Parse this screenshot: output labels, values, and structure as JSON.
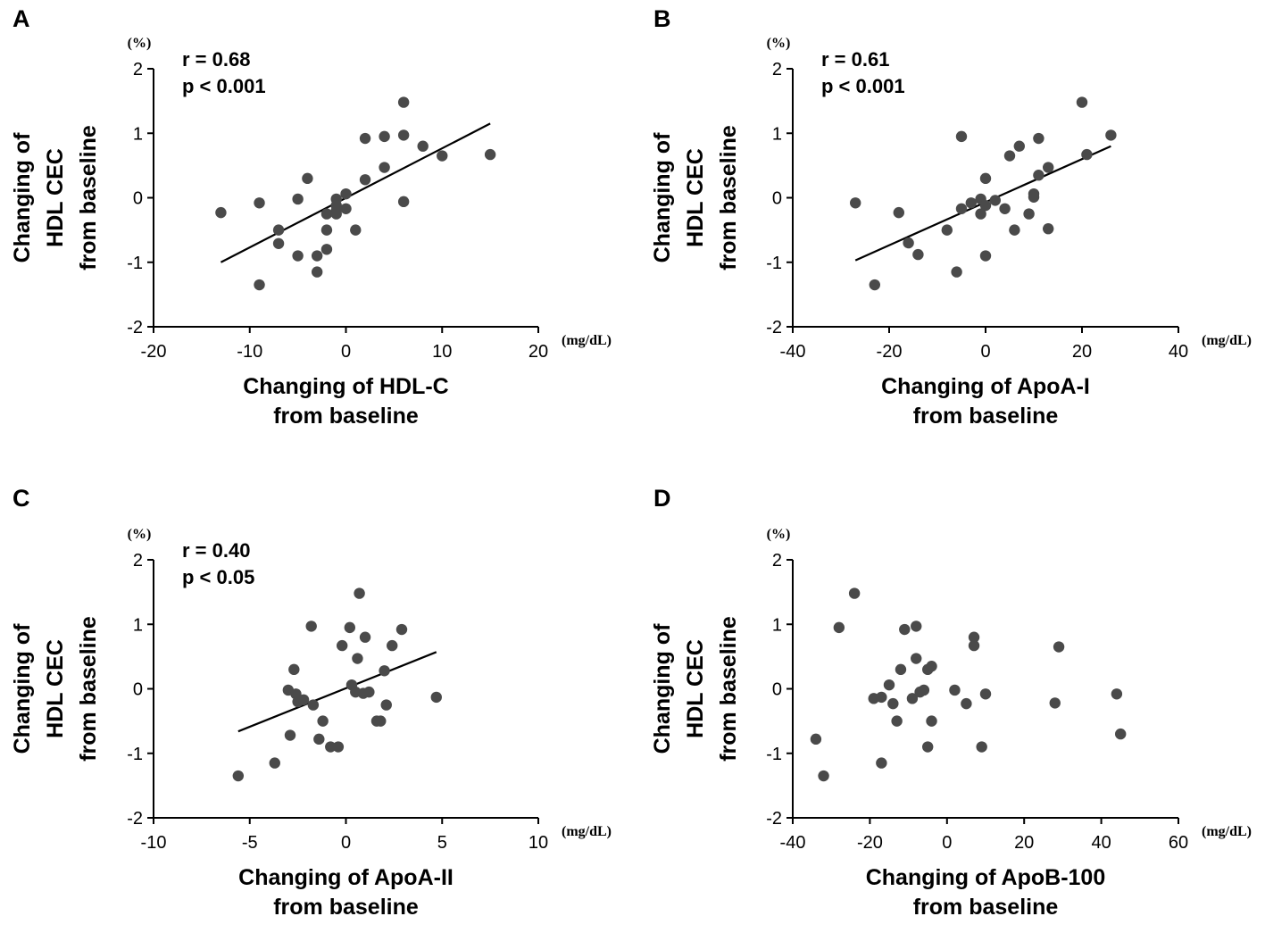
{
  "chart_data": [
    {
      "type": "scatter",
      "panel": "A",
      "title": "",
      "xlabel": [
        "Changing of HDL-C",
        "from baseline"
      ],
      "ylabel": [
        "Changing of",
        "HDL CEC",
        "from baseline"
      ],
      "x_unit": "(mg/dL)",
      "y_unit": "(%)",
      "xlim": [
        -20,
        20
      ],
      "ylim": [
        -2,
        2
      ],
      "x_ticks": [
        -20,
        -10,
        0,
        10,
        20
      ],
      "y_ticks": [
        -2,
        -1,
        0,
        1,
        2
      ],
      "annotations": [
        "r = 0.68",
        "p < 0.001"
      ],
      "fit_line": {
        "x": [
          -13,
          15
        ],
        "y": [
          -1.0,
          1.15
        ]
      },
      "points": {
        "x": [
          -13,
          -9,
          -9,
          -7,
          -7,
          -5,
          -5,
          -4,
          -3,
          -3,
          -2,
          -2,
          -2,
          -1,
          -1,
          -1,
          -1,
          0,
          0,
          1,
          2,
          2,
          4,
          4,
          6,
          6,
          6,
          8,
          10,
          15
        ],
        "y": [
          -0.23,
          -0.08,
          -1.35,
          -0.5,
          -0.71,
          -0.02,
          -0.9,
          0.3,
          -0.9,
          -1.15,
          -0.25,
          -0.5,
          -0.8,
          -0.02,
          -0.12,
          -0.2,
          -0.25,
          0.06,
          -0.17,
          -0.5,
          0.92,
          0.28,
          0.95,
          0.47,
          1.48,
          0.97,
          -0.06,
          0.8,
          0.65,
          0.67
        ]
      }
    },
    {
      "type": "scatter",
      "panel": "B",
      "title": "",
      "xlabel": [
        "Changing of ApoA-I",
        "from baseline"
      ],
      "ylabel": [
        "Changing of",
        "HDL CEC",
        "from baseline"
      ],
      "x_unit": "(mg/dL)",
      "y_unit": "(%)",
      "xlim": [
        -40,
        40
      ],
      "ylim": [
        -2,
        2
      ],
      "x_ticks": [
        -40,
        -20,
        0,
        20,
        40
      ],
      "y_ticks": [
        -2,
        -1,
        0,
        1,
        2
      ],
      "annotations": [
        "r = 0.61",
        "p < 0.001"
      ],
      "fit_line": {
        "x": [
          -27,
          26
        ],
        "y": [
          -0.97,
          0.8
        ]
      },
      "points": {
        "x": [
          -27,
          -23,
          -18,
          -16,
          -14,
          -8,
          -6,
          -5,
          -5,
          -3,
          -1,
          -1,
          0,
          0,
          0,
          2,
          4,
          5,
          6,
          7,
          9,
          10,
          10,
          11,
          11,
          13,
          13,
          20,
          21,
          26
        ],
        "y": [
          -0.08,
          -1.35,
          -0.23,
          -0.7,
          -0.88,
          -0.5,
          -1.15,
          0.95,
          -0.17,
          -0.08,
          -0.02,
          -0.25,
          0.3,
          -0.12,
          -0.9,
          -0.04,
          -0.17,
          0.65,
          -0.5,
          0.8,
          -0.25,
          0.06,
          0.01,
          0.92,
          0.35,
          0.47,
          -0.48,
          1.48,
          0.67,
          0.97
        ]
      }
    },
    {
      "type": "scatter",
      "panel": "C",
      "title": "",
      "xlabel": [
        "Changing of ApoA-II",
        "from baseline"
      ],
      "ylabel": [
        "Changing of",
        "HDL CEC",
        "from baseline"
      ],
      "x_unit": "(mg/dL)",
      "y_unit": "(%)",
      "xlim": [
        -10,
        10
      ],
      "ylim": [
        -2,
        2
      ],
      "x_ticks": [
        -10,
        -5,
        0,
        5,
        10
      ],
      "y_ticks": [
        -2,
        -1,
        0,
        1,
        2
      ],
      "annotations": [
        "r = 0.40",
        "p < 0.05"
      ],
      "fit_line": {
        "x": [
          -5.6,
          4.7
        ],
        "y": [
          -0.66,
          0.57
        ]
      },
      "points": {
        "x": [
          -5.6,
          -3.7,
          -3.0,
          -2.9,
          -2.7,
          -2.6,
          -2.5,
          -2.2,
          -1.8,
          -1.7,
          -1.4,
          -1.2,
          -0.8,
          -0.4,
          0.2,
          0.3,
          0.5,
          0.6,
          0.7,
          0.9,
          1.0,
          1.2,
          1.6,
          1.8,
          2.0,
          2.1,
          2.4,
          2.9,
          4.7,
          -0.2
        ],
        "y": [
          -1.35,
          -1.15,
          -0.02,
          -0.72,
          0.3,
          -0.08,
          -0.2,
          -0.17,
          0.97,
          -0.25,
          -0.78,
          -0.5,
          -0.9,
          -0.9,
          0.95,
          0.06,
          -0.05,
          0.47,
          1.48,
          -0.07,
          0.8,
          -0.05,
          -0.5,
          -0.5,
          0.28,
          -0.25,
          0.67,
          0.92,
          -0.13,
          0.67
        ]
      }
    },
    {
      "type": "scatter",
      "panel": "D",
      "title": "",
      "xlabel": [
        "Changing of ApoB-100",
        "from baseline"
      ],
      "ylabel": [
        "Changing of",
        "HDL CEC",
        "from baseline"
      ],
      "x_unit": "(mg/dL)",
      "y_unit": "(%)",
      "xlim": [
        -40,
        60
      ],
      "ylim": [
        -2,
        2
      ],
      "x_ticks": [
        -40,
        -20,
        0,
        20,
        40,
        60
      ],
      "y_ticks": [
        -2,
        -1,
        0,
        1,
        2
      ],
      "annotations": [],
      "fit_line": null,
      "points": {
        "x": [
          -34,
          -32,
          -28,
          -24,
          -19,
          -17,
          -17,
          -15,
          -14,
          -13,
          -12,
          -11,
          -9,
          -8,
          -8,
          -7,
          -6,
          -5,
          -5,
          -4,
          -4,
          2,
          5,
          7,
          7,
          9,
          10,
          28,
          29,
          44,
          45
        ],
        "y": [
          -0.78,
          -1.35,
          0.95,
          1.48,
          -0.15,
          -0.13,
          -1.15,
          0.06,
          -0.23,
          -0.5,
          0.3,
          0.92,
          -0.15,
          0.47,
          0.97,
          -0.05,
          -0.02,
          0.3,
          -0.9,
          0.35,
          -0.5,
          -0.02,
          -0.23,
          0.8,
          0.67,
          -0.9,
          -0.08,
          -0.22,
          0.65,
          -0.08,
          -0.7
        ]
      }
    }
  ]
}
